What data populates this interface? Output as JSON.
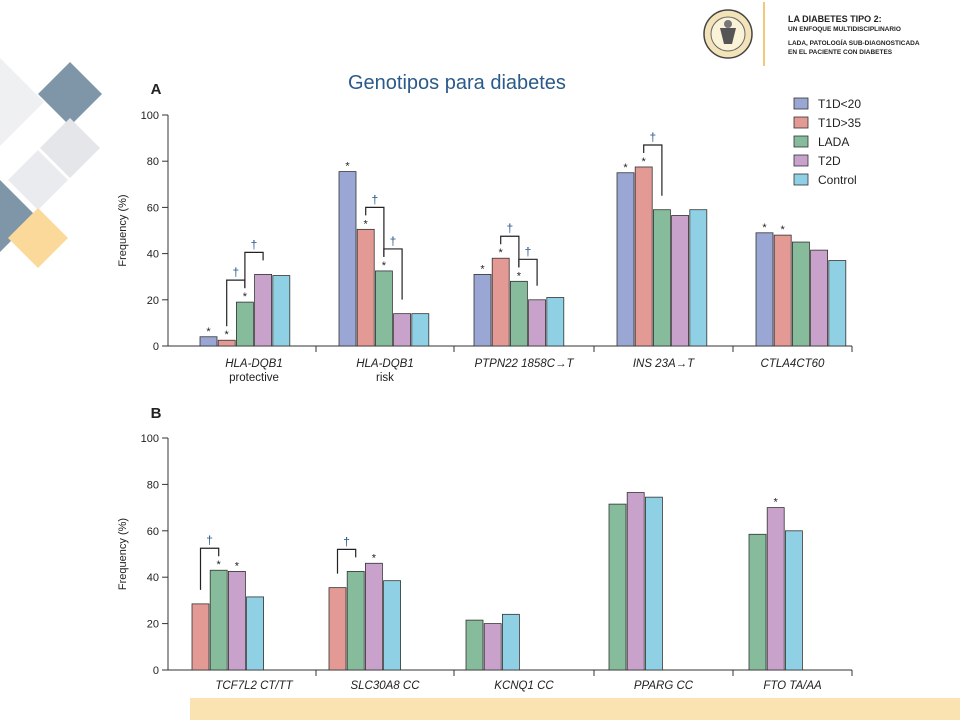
{
  "slide": {
    "title": "Genotipos para diabetes"
  },
  "header": {
    "logo_seal_text": "UNIVERSIDAD NACIONAL DE RIO CUARTO · 150 AÑOS",
    "line1": "LA DIABETES TIPO 2:",
    "line2": "UN ENFOQUE MULTIDISCIPLINARIO",
    "line3": "LADA, PATOLOGÍA SUB-DIAGNOSTICADA",
    "line4": "EN EL PACIENTE CON DIABETES"
  },
  "colors": {
    "T1D<20": "#9aa6d4",
    "T1D>35": "#e39a94",
    "LADA": "#86bc9c",
    "T2D": "#c9a2cc",
    "Control": "#8fd0e4",
    "accent_title": "#2a5a8a",
    "deco_dark": "#7f96a8",
    "deco_light": "#e4e6e9",
    "deco_gold": "#fad99a"
  },
  "chart_data": [
    {
      "type": "bar",
      "panel": "A",
      "ylabel": "Frequency (%)",
      "ylim": [
        0,
        100
      ],
      "yticks": [
        0,
        20,
        40,
        60,
        80,
        100
      ],
      "legend": [
        "T1D<20",
        "T1D>35",
        "LADA",
        "T2D",
        "Control"
      ],
      "legend_position": "top-right",
      "groups": [
        {
          "label": [
            "HLA-DQB1",
            "protective"
          ],
          "values": {
            "T1D<20": 4,
            "T1D>35": 2.5,
            "LADA": 19,
            "T2D": 31,
            "Control": 30.5
          },
          "stars": [
            "T1D<20",
            "T1D>35",
            "LADA"
          ],
          "daggers": [
            [
              "T1D>35",
              "LADA"
            ],
            [
              "LADA",
              "T2D"
            ]
          ]
        },
        {
          "label": [
            "HLA-DQB1",
            "risk"
          ],
          "values": {
            "T1D<20": 75.5,
            "T1D>35": 50.5,
            "LADA": 32.5,
            "T2D": 14,
            "Control": 14
          },
          "stars": [
            "T1D<20",
            "T1D>35",
            "LADA"
          ],
          "daggers": [
            [
              "T1D>35",
              "LADA"
            ],
            [
              "LADA",
              "T2D"
            ]
          ]
        },
        {
          "label": [
            "PTPN22 1858C→T"
          ],
          "values": {
            "T1D<20": 31,
            "T1D>35": 38,
            "LADA": 28,
            "T2D": 20,
            "Control": 21
          },
          "stars": [
            "T1D<20",
            "T1D>35",
            "LADA"
          ],
          "daggers": [
            [
              "T1D>35",
              "LADA"
            ],
            [
              "LADA",
              "T2D"
            ]
          ]
        },
        {
          "label": [
            "INS 23A→T"
          ],
          "values": {
            "T1D<20": 75,
            "T1D>35": 77.5,
            "LADA": 59,
            "T2D": 56.5,
            "Control": 59
          },
          "stars": [
            "T1D<20",
            "T1D>35"
          ],
          "daggers": [
            [
              "T1D>35",
              "LADA"
            ]
          ]
        },
        {
          "label": [
            "CTLA4CT60"
          ],
          "values": {
            "T1D<20": 49,
            "T1D>35": 48,
            "LADA": 45,
            "T2D": 41.5,
            "Control": 37
          },
          "stars": [
            "T1D<20",
            "T1D>35"
          ],
          "daggers": []
        }
      ]
    },
    {
      "type": "bar",
      "panel": "B",
      "ylabel": "Frequency (%)",
      "ylim": [
        0,
        100
      ],
      "yticks": [
        0,
        20,
        40,
        60,
        80,
        100
      ],
      "groups": [
        {
          "label": [
            "TCF7L2 CT/TT"
          ],
          "values": {
            "T1D>35": 28.5,
            "LADA": 43,
            "T2D": 42.5,
            "Control": 31.5
          },
          "stars": [
            "LADA",
            "T2D"
          ],
          "daggers": [
            [
              "T1D>35",
              "LADA"
            ]
          ]
        },
        {
          "label": [
            "SLC30A8 CC"
          ],
          "values": {
            "T1D>35": 35.5,
            "LADA": 42.5,
            "T2D": 46,
            "Control": 38.5
          },
          "stars": [
            "T2D"
          ],
          "daggers": [
            [
              "T1D>35",
              "LADA"
            ]
          ]
        },
        {
          "label": [
            "KCNQ1 CC"
          ],
          "values": {
            "LADA": 21.5,
            "T2D": 20,
            "Control": 24
          },
          "stars": [],
          "daggers": []
        },
        {
          "label": [
            "PPARG CC"
          ],
          "values": {
            "LADA": 71.5,
            "T2D": 76.5,
            "Control": 74.5
          },
          "stars": [],
          "daggers": []
        },
        {
          "label": [
            "FTO TA/AA"
          ],
          "values": {
            "LADA": 58.5,
            "T2D": 70,
            "Control": 60
          },
          "stars": [
            "T2D"
          ],
          "daggers": []
        }
      ]
    }
  ],
  "icons": {
    "star_marker": "*",
    "dagger_marker": "†"
  }
}
